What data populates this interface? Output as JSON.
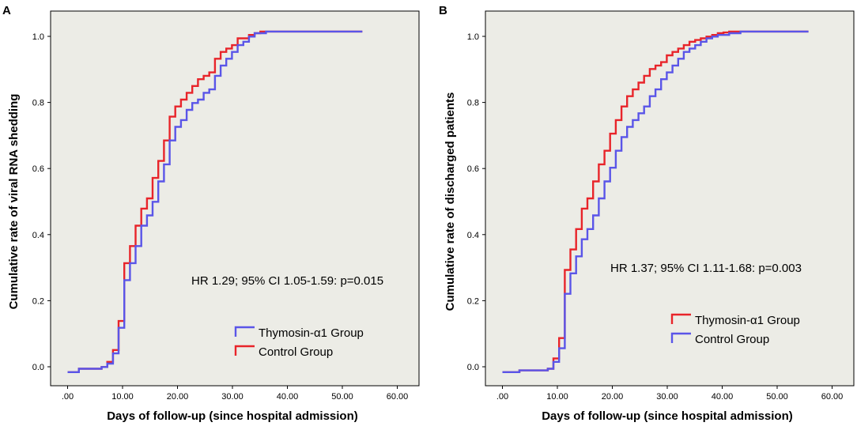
{
  "colors": {
    "red": "#e8242a",
    "blue": "#5a55e8",
    "plot_bg": "#ecece6"
  },
  "chart_data": [
    {
      "panel": "A",
      "type": "line",
      "step": true,
      "title": "",
      "xlabel": "Days of follow-up (since hospital admission)",
      "ylabel": "Cumulative rate of viral RNA shedding",
      "xlim": [
        -3,
        62
      ],
      "ylim": [
        -0.04,
        1.06
      ],
      "xticks": [
        0,
        10,
        20,
        30,
        40,
        50,
        60
      ],
      "xtick_labels": [
        ".00",
        "10.00",
        "20.00",
        "30.00",
        "40.00",
        "50.00",
        "60.00"
      ],
      "yticks": [
        0,
        0.2,
        0.4,
        0.6,
        0.8,
        1.0
      ],
      "ytick_labels": [
        "0.0",
        "0.2",
        "0.4",
        "0.6",
        "0.8",
        "1.0"
      ],
      "annotation": "HR 1.29; 95% CI 1.05-1.59: p=0.015",
      "legend_position": "lower-right",
      "series": [
        {
          "name": "Control Group",
          "color": "#e8242a",
          "x": [
            0,
            2,
            6,
            7,
            8,
            9,
            10,
            11,
            12,
            13,
            14,
            15,
            16,
            17,
            18,
            19,
            20,
            21,
            22,
            23,
            24,
            25,
            26,
            27,
            28,
            29,
            30,
            32,
            33,
            34,
            52
          ],
          "y": [
            0,
            0.01,
            0.015,
            0.03,
            0.065,
            0.15,
            0.32,
            0.37,
            0.43,
            0.48,
            0.51,
            0.57,
            0.62,
            0.68,
            0.75,
            0.78,
            0.8,
            0.82,
            0.84,
            0.86,
            0.87,
            0.88,
            0.92,
            0.94,
            0.95,
            0.96,
            0.98,
            0.99,
            0.995,
            1.0,
            1.0
          ]
        },
        {
          "name": "Thymosin-α1 Group",
          "color": "#5a55e8",
          "x": [
            0,
            2,
            6,
            7,
            8,
            9,
            10,
            11,
            12,
            13,
            14,
            15,
            16,
            17,
            18,
            19,
            20,
            21,
            22,
            23,
            24,
            25,
            26,
            27,
            28,
            29,
            30,
            31,
            32,
            33,
            35,
            52
          ],
          "y": [
            0,
            0.01,
            0.015,
            0.025,
            0.055,
            0.13,
            0.27,
            0.32,
            0.37,
            0.43,
            0.46,
            0.5,
            0.56,
            0.61,
            0.68,
            0.72,
            0.74,
            0.77,
            0.79,
            0.8,
            0.82,
            0.83,
            0.87,
            0.9,
            0.92,
            0.94,
            0.96,
            0.97,
            0.985,
            0.995,
            1.0,
            1.0
          ]
        }
      ],
      "legend": [
        "Thymosin-α1 Group",
        "Control Group"
      ]
    },
    {
      "panel": "B",
      "type": "line",
      "step": true,
      "title": "",
      "xlabel": "Days of follow-up (since hospital admission)",
      "ylabel": "Cumulative rate of discharged patients",
      "xlim": [
        -3,
        62
      ],
      "ylim": [
        -0.04,
        1.06
      ],
      "xticks": [
        0,
        10,
        20,
        30,
        40,
        50,
        60
      ],
      "xtick_labels": [
        ".00",
        "10.00",
        "20.00",
        "30.00",
        "40.00",
        "50.00",
        "60.00"
      ],
      "yticks": [
        0,
        0.2,
        0.4,
        0.6,
        0.8,
        1.0
      ],
      "ytick_labels": [
        "0.0",
        "0.2",
        "0.4",
        "0.6",
        "0.8",
        "1.0"
      ],
      "annotation": "HR 1.37; 95% CI 1.11-1.68: p=0.003",
      "legend_position": "lower-right",
      "series": [
        {
          "name": "Thymosin-α1 Group",
          "color": "#e8242a",
          "x": [
            0,
            3,
            8,
            9,
            10,
            11,
            12,
            13,
            14,
            15,
            16,
            17,
            18,
            19,
            20,
            21,
            22,
            23,
            24,
            25,
            26,
            27,
            28,
            29,
            30,
            31,
            32,
            33,
            34,
            35,
            36,
            37,
            38,
            39,
            40,
            42,
            54
          ],
          "y": [
            0,
            0.005,
            0.01,
            0.04,
            0.1,
            0.3,
            0.36,
            0.42,
            0.48,
            0.51,
            0.56,
            0.61,
            0.65,
            0.7,
            0.74,
            0.78,
            0.81,
            0.83,
            0.85,
            0.87,
            0.89,
            0.9,
            0.91,
            0.93,
            0.94,
            0.95,
            0.96,
            0.97,
            0.975,
            0.98,
            0.985,
            0.99,
            0.995,
            0.997,
            1.0,
            1.0,
            1.0
          ]
        },
        {
          "name": "Control Group",
          "color": "#5a55e8",
          "x": [
            0,
            3,
            8,
            9,
            10,
            11,
            12,
            13,
            14,
            15,
            16,
            17,
            18,
            19,
            20,
            21,
            22,
            23,
            24,
            25,
            26,
            27,
            28,
            29,
            30,
            31,
            32,
            33,
            34,
            35,
            36,
            37,
            38,
            40,
            42,
            54
          ],
          "y": [
            0,
            0.005,
            0.01,
            0.03,
            0.07,
            0.23,
            0.29,
            0.34,
            0.39,
            0.42,
            0.46,
            0.51,
            0.56,
            0.6,
            0.65,
            0.69,
            0.72,
            0.74,
            0.76,
            0.78,
            0.81,
            0.83,
            0.86,
            0.88,
            0.9,
            0.92,
            0.94,
            0.95,
            0.96,
            0.97,
            0.98,
            0.985,
            0.99,
            0.995,
            1.0,
            1.0
          ]
        }
      ],
      "legend": [
        "Thymosin-α1 Group",
        "Control Group"
      ]
    }
  ]
}
